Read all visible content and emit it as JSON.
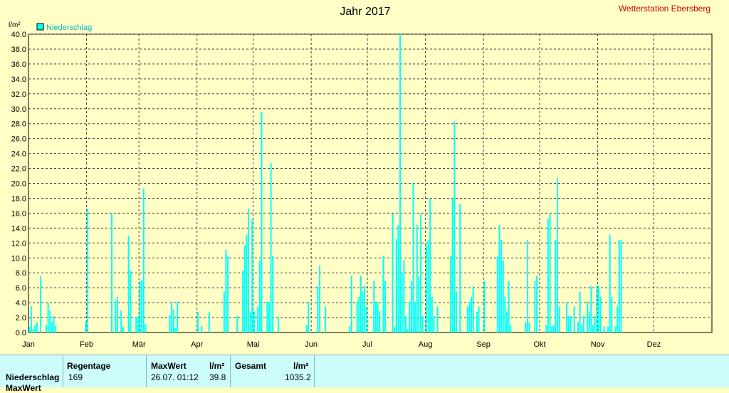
{
  "header": {
    "title": "Jahr 2017",
    "station": "Wetterstation Ebersberg",
    "unit": "l/m²"
  },
  "chart_data": {
    "type": "bar",
    "title": "Jahr 2017",
    "ylabel": "l/m²",
    "ylim": [
      0,
      40
    ],
    "yticks": [
      "0.0",
      "2.0",
      "4.0",
      "6.0",
      "8.0",
      "10.0",
      "12.0",
      "14.0",
      "16.0",
      "18.0",
      "20.0",
      "22.0",
      "24.0",
      "26.0",
      "28.0",
      "30.0",
      "32.0",
      "34.0",
      "36.0",
      "38.0",
      "40.0"
    ],
    "months": [
      "Jan",
      "Feb",
      "Mär",
      "Apr",
      "Mai",
      "Jun",
      "Jul",
      "Aug",
      "Sep",
      "Okt",
      "Nov",
      "Dez"
    ],
    "grid": true,
    "legend": "top-left",
    "series": [
      {
        "name": "Niederschlag",
        "color": "#00ffff",
        "points": [
          [
            1,
            0.8
          ],
          [
            2,
            3.5
          ],
          [
            3,
            0.5
          ],
          [
            4,
            1.0
          ],
          [
            5,
            1.4
          ],
          [
            7,
            7.6
          ],
          [
            10,
            1.0
          ],
          [
            11,
            4.0
          ],
          [
            12,
            2.9
          ],
          [
            13,
            1.4
          ],
          [
            14,
            2.2
          ],
          [
            15,
            0.9
          ],
          [
            31,
            1.4
          ],
          [
            32,
            16.6
          ],
          [
            45,
            16.0
          ],
          [
            47,
            4.3
          ],
          [
            48,
            4.8
          ],
          [
            50,
            2.9
          ],
          [
            51,
            0.8
          ],
          [
            54,
            13.0
          ],
          [
            55,
            8.3
          ],
          [
            58,
            2.1
          ],
          [
            59,
            2.1
          ],
          [
            60,
            6.9
          ],
          [
            61,
            7.0
          ],
          [
            62,
            19.3
          ],
          [
            63,
            1.1
          ],
          [
            76,
            2.4
          ],
          [
            77,
            4.1
          ],
          [
            78,
            3.0
          ],
          [
            79,
            0.6
          ],
          [
            80,
            4.1
          ],
          [
            91,
            2.8
          ],
          [
            93,
            0.9
          ],
          [
            97,
            2.8
          ],
          [
            105,
            5.5
          ],
          [
            106,
            11.1
          ],
          [
            107,
            10.3
          ],
          [
            112,
            2.2
          ],
          [
            115,
            8.3
          ],
          [
            116,
            11.7
          ],
          [
            117,
            13.1
          ],
          [
            118,
            16.6
          ],
          [
            119,
            2.8
          ],
          [
            120,
            15.2
          ],
          [
            121,
            2.8
          ],
          [
            123,
            3.5
          ],
          [
            124,
            9.7
          ],
          [
            125,
            29.6
          ],
          [
            128,
            4.1
          ],
          [
            129,
            4.1
          ],
          [
            130,
            22.7
          ],
          [
            131,
            10.3
          ],
          [
            134,
            2.1
          ],
          [
            149,
            1.0
          ],
          [
            150,
            4.1
          ],
          [
            155,
            6.2
          ],
          [
            156,
            9.0
          ],
          [
            159,
            3.5
          ],
          [
            172,
            0.8
          ],
          [
            173,
            7.6
          ],
          [
            176,
            4.1
          ],
          [
            177,
            4.8
          ],
          [
            178,
            7.6
          ],
          [
            179,
            5.5
          ],
          [
            180,
            6.2
          ],
          [
            181,
            3.5
          ],
          [
            185,
            6.9
          ],
          [
            186,
            4.1
          ],
          [
            187,
            4.1
          ],
          [
            188,
            2.9
          ],
          [
            190,
            10.3
          ],
          [
            191,
            6.9
          ],
          [
            195,
            15.9
          ],
          [
            196,
            0.8
          ],
          [
            197,
            12.5
          ],
          [
            198,
            14.4
          ],
          [
            199,
            40.0
          ],
          [
            200,
            8.0
          ],
          [
            201,
            9.7
          ],
          [
            202,
            2.2
          ],
          [
            203,
            0.5
          ],
          [
            204,
            4.1
          ],
          [
            205,
            6.9
          ],
          [
            206,
            20.0
          ],
          [
            207,
            4.1
          ],
          [
            208,
            14.4
          ],
          [
            209,
            7.6
          ],
          [
            210,
            15.9
          ],
          [
            211,
            2.2
          ],
          [
            213,
            11.7
          ],
          [
            214,
            12.4
          ],
          [
            215,
            18.0
          ],
          [
            216,
            4.8
          ],
          [
            217,
            2.2
          ],
          [
            219,
            3.5
          ],
          [
            226,
            10.3
          ],
          [
            227,
            18.0
          ],
          [
            228,
            28.3
          ],
          [
            229,
            5.5
          ],
          [
            231,
            17.2
          ],
          [
            235,
            3.5
          ],
          [
            236,
            4.1
          ],
          [
            237,
            4.8
          ],
          [
            238,
            6.2
          ],
          [
            240,
            2.8
          ],
          [
            241,
            3.5
          ],
          [
            244,
            6.9
          ],
          [
            251,
            10.3
          ],
          [
            252,
            14.4
          ],
          [
            253,
            12.4
          ],
          [
            254,
            9.7
          ],
          [
            255,
            4.8
          ],
          [
            256,
            2.8
          ],
          [
            257,
            6.9
          ],
          [
            258,
            1.0
          ],
          [
            266,
            1.4
          ],
          [
            267,
            12.4
          ],
          [
            268,
            1.4
          ],
          [
            271,
            6.9
          ],
          [
            272,
            7.6
          ],
          [
            277,
            1.0
          ],
          [
            278,
            15.2
          ],
          [
            279,
            15.9
          ],
          [
            280,
            0.8
          ],
          [
            281,
            1.0
          ],
          [
            282,
            12.4
          ],
          [
            283,
            20.7
          ],
          [
            284,
            3.5
          ],
          [
            288,
            4.1
          ],
          [
            289,
            2.2
          ],
          [
            290,
            2.2
          ],
          [
            292,
            3.5
          ],
          [
            294,
            1.4
          ],
          [
            295,
            5.5
          ],
          [
            296,
            1.0
          ],
          [
            297,
            2.2
          ],
          [
            299,
            4.1
          ],
          [
            300,
            2.8
          ],
          [
            301,
            6.2
          ],
          [
            302,
            1.0
          ],
          [
            303,
            2.2
          ],
          [
            304,
            6.2
          ],
          [
            305,
            6.2
          ],
          [
            306,
            4.8
          ],
          [
            308,
            0.8
          ],
          [
            310,
            0.8
          ],
          [
            311,
            13.1
          ],
          [
            312,
            4.8
          ],
          [
            314,
            0.8
          ],
          [
            315,
            3.5
          ],
          [
            316,
            12.4
          ],
          [
            317,
            12.4
          ]
        ]
      }
    ]
  },
  "stats": {
    "row_label": "Niederschlag",
    "row2_label": "MaxWert",
    "regentage_label": "Regentage",
    "regentage_value": "169",
    "maxwert_label": "MaxWert",
    "maxwert_unit": "l/m²",
    "maxwert_date": "26.07.  01:12",
    "maxwert_value": "39.8",
    "gesamt_label": "Gesamt",
    "gesamt_unit": "l/m²",
    "gesamt_value": "1035.2"
  }
}
